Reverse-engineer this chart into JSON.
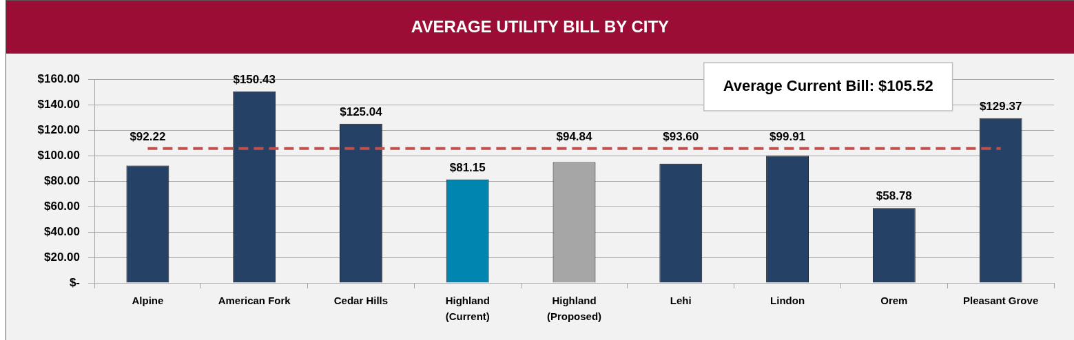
{
  "chart_data": {
    "type": "bar",
    "title": "AVERAGE UTILITY BILL BY CITY",
    "categories": [
      "Alpine",
      "American Fork",
      "Cedar Hills",
      "Highland (Current)",
      "Highland (Proposed)",
      "Lehi",
      "Lindon",
      "Orem",
      "Pleasant Grove"
    ],
    "values": [
      92.22,
      150.43,
      125.04,
      81.15,
      94.84,
      93.6,
      99.91,
      58.78,
      129.37
    ],
    "colors": [
      "#254266",
      "#254266",
      "#254266",
      "#0084b0",
      "#a6a6a6",
      "#254266",
      "#254266",
      "#254266",
      "#254266"
    ],
    "value_labels": [
      "$92.22",
      "$150.43",
      "$125.04",
      "$81.15",
      "$94.84",
      "$93.60",
      "$99.91",
      "$58.78",
      "$129.37"
    ],
    "ylim": [
      0,
      160
    ],
    "yticks": [
      {
        "value": 0,
        "label": "$-"
      },
      {
        "value": 20,
        "label": "$20.00"
      },
      {
        "value": 40,
        "label": "$40.00"
      },
      {
        "value": 60,
        "label": "$60.00"
      },
      {
        "value": 80,
        "label": "$80.00"
      },
      {
        "value": 100,
        "label": "$100.00"
      },
      {
        "value": 120,
        "label": "$120.00"
      },
      {
        "value": 140,
        "label": "$140.00"
      },
      {
        "value": 160,
        "label": "$160.00"
      }
    ],
    "grid": "y",
    "ref_lines": [
      {
        "axis": "y",
        "value": 105.52,
        "color": "#c0504d",
        "line_style": "dashed"
      }
    ],
    "annotations": [
      "Average Current Bill: $105.52"
    ]
  }
}
